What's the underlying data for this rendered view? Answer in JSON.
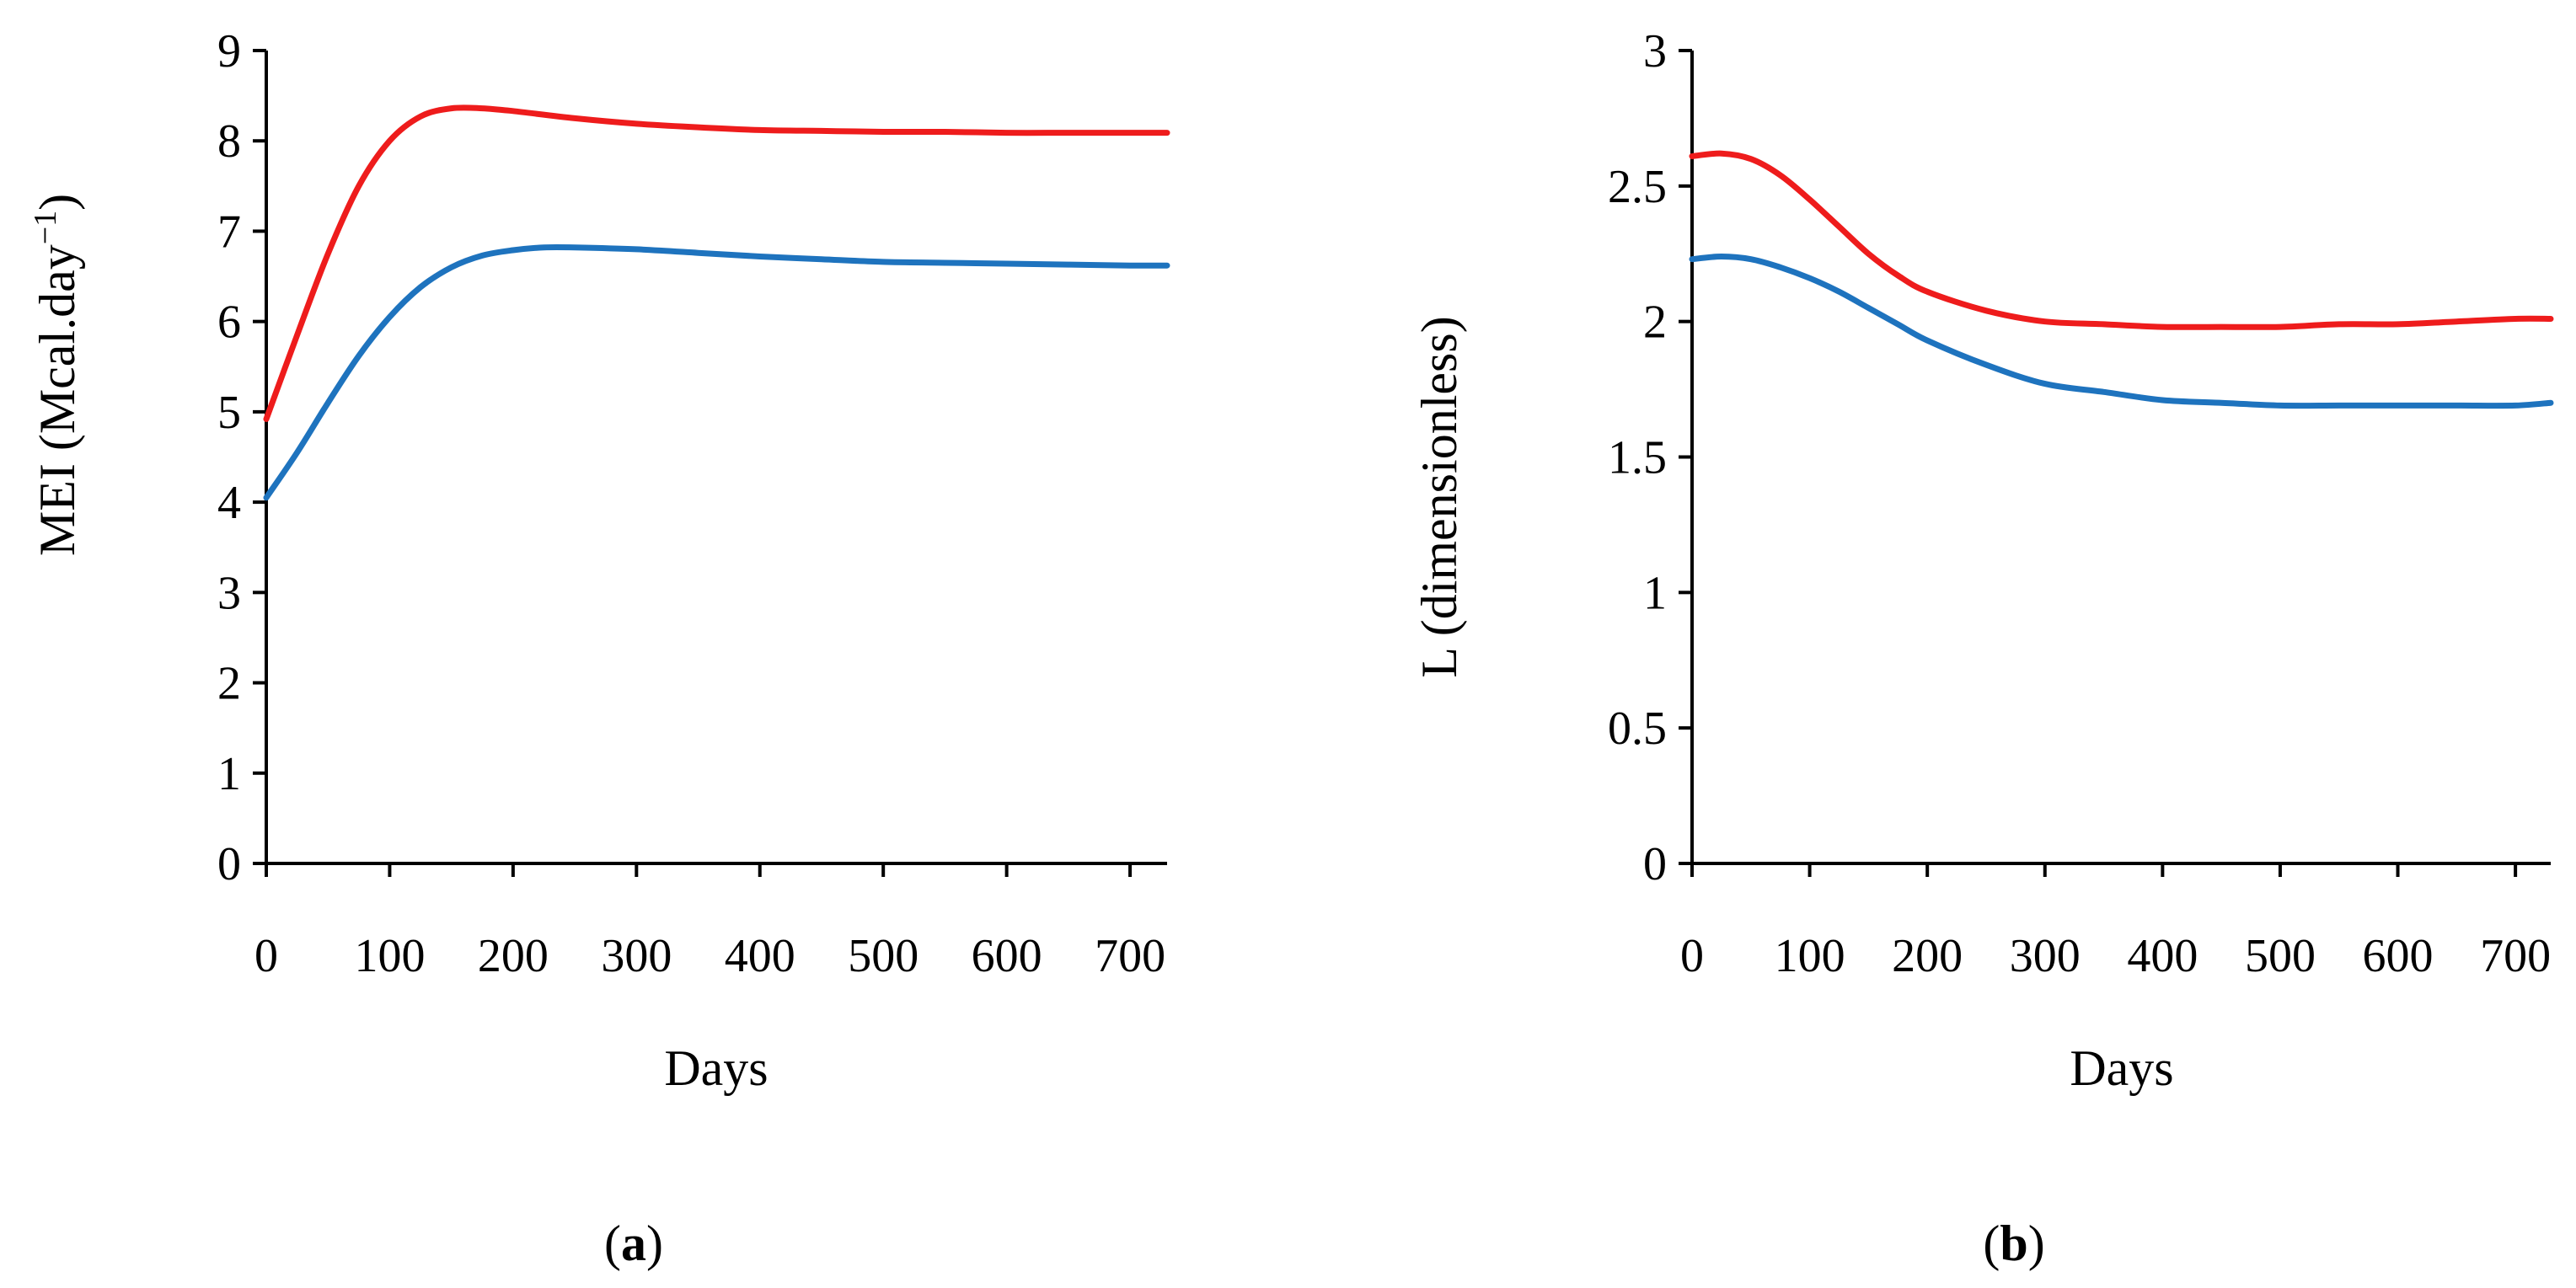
{
  "chart_data": [
    {
      "type": "line",
      "panel_label": "(a)",
      "panel_letter": "a",
      "xlabel": "Days",
      "ylabel": "MEI (Mcal.day",
      "ylabel_sup": "−1",
      "ylabel_close": ")",
      "xlim": [
        0,
        730
      ],
      "ylim": [
        0,
        9
      ],
      "xticks": [
        0,
        100,
        200,
        300,
        400,
        500,
        600,
        700
      ],
      "yticks": [
        0,
        1,
        2,
        3,
        4,
        5,
        6,
        7,
        8,
        9
      ],
      "series": [
        {
          "name": "red",
          "color": "#ee1c1c",
          "x": [
            0,
            25,
            50,
            75,
            100,
            125,
            150,
            175,
            200,
            250,
            300,
            350,
            400,
            450,
            500,
            550,
            600,
            650,
            700,
            730
          ],
          "y": [
            4.92,
            5.85,
            6.75,
            7.5,
            8.0,
            8.27,
            8.36,
            8.36,
            8.33,
            8.25,
            8.19,
            8.15,
            8.12,
            8.11,
            8.1,
            8.1,
            8.09,
            8.09,
            8.09,
            8.09
          ]
        },
        {
          "name": "blue",
          "color": "#1e73be",
          "x": [
            0,
            25,
            50,
            75,
            100,
            125,
            150,
            175,
            200,
            225,
            250,
            300,
            350,
            400,
            450,
            500,
            550,
            600,
            650,
            700,
            730
          ],
          "y": [
            4.05,
            4.55,
            5.1,
            5.62,
            6.05,
            6.38,
            6.6,
            6.73,
            6.79,
            6.82,
            6.82,
            6.8,
            6.76,
            6.72,
            6.69,
            6.66,
            6.65,
            6.64,
            6.63,
            6.62,
            6.62
          ]
        }
      ]
    },
    {
      "type": "line",
      "panel_label": "(b)",
      "panel_letter": "b",
      "xlabel": "Days",
      "ylabel": "L (dimensionless)",
      "xlim": [
        0,
        730
      ],
      "ylim": [
        0,
        3
      ],
      "xticks": [
        0,
        100,
        200,
        300,
        400,
        500,
        600,
        700
      ],
      "yticks": [
        0,
        0.5,
        1,
        1.5,
        2,
        2.5,
        3
      ],
      "series": [
        {
          "name": "red",
          "color": "#ee1c1c",
          "x": [
            0,
            25,
            50,
            75,
            100,
            125,
            150,
            175,
            200,
            250,
            300,
            350,
            400,
            450,
            500,
            550,
            600,
            650,
            700,
            730
          ],
          "y": [
            2.61,
            2.62,
            2.6,
            2.54,
            2.45,
            2.35,
            2.25,
            2.17,
            2.11,
            2.04,
            2.0,
            1.99,
            1.98,
            1.98,
            1.98,
            1.99,
            1.99,
            2.0,
            2.01,
            2.01
          ]
        },
        {
          "name": "blue",
          "color": "#1e73be",
          "x": [
            0,
            25,
            50,
            75,
            100,
            125,
            150,
            175,
            200,
            250,
            300,
            350,
            400,
            450,
            500,
            550,
            600,
            650,
            700,
            730
          ],
          "y": [
            2.23,
            2.24,
            2.23,
            2.2,
            2.16,
            2.11,
            2.05,
            1.99,
            1.93,
            1.84,
            1.77,
            1.74,
            1.71,
            1.7,
            1.69,
            1.69,
            1.69,
            1.69,
            1.69,
            1.7
          ]
        }
      ]
    }
  ]
}
